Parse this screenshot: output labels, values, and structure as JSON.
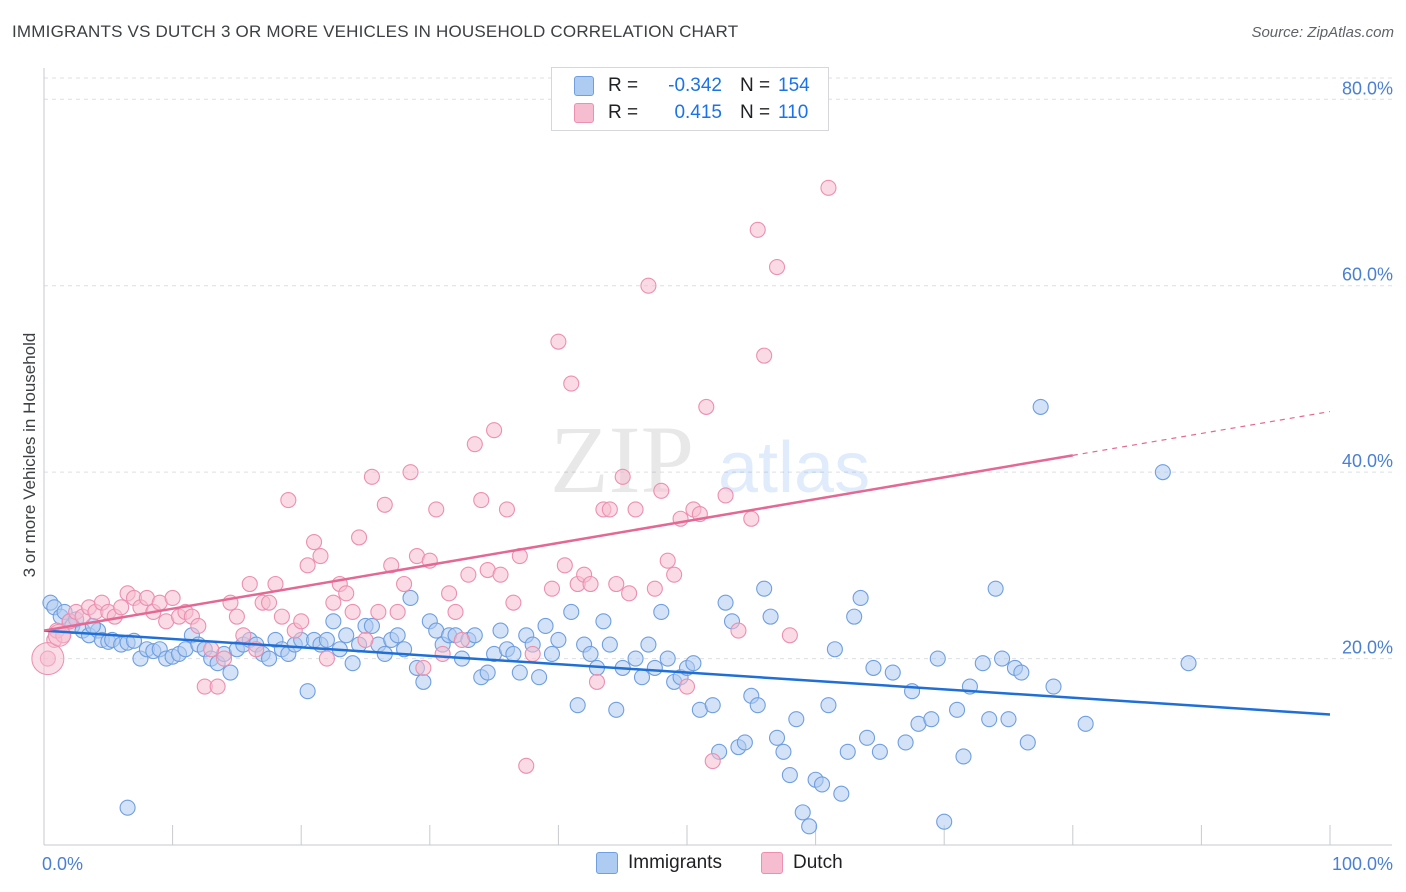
{
  "header": {
    "title": "IMMIGRANTS VS DUTCH 3 OR MORE VEHICLES IN HOUSEHOLD CORRELATION CHART",
    "source": "Source: ZipAtlas.com"
  },
  "legend_top": {
    "rows": [
      {
        "r_label": "R =",
        "r_value": "-0.342",
        "n_label": "N =",
        "n_value": "154"
      },
      {
        "r_label": "R =",
        "r_value": "0.415",
        "n_label": "N =",
        "n_value": "110"
      }
    ]
  },
  "legend_bottom": {
    "immigrants_label": "Immigrants",
    "dutch_label": "Dutch"
  },
  "watermark": {
    "zip": "ZIP",
    "atlas": "atlas"
  },
  "chart_data": {
    "type": "scatter",
    "title": "IMMIGRANTS VS DUTCH 3 OR MORE VEHICLES IN HOUSEHOLD CORRELATION CHART",
    "xlabel": "",
    "ylabel": "3 or more Vehicles in Household",
    "xlim": [
      0,
      100
    ],
    "ylim": [
      0,
      84
    ],
    "x_tick_labels": {
      "left": "0.0%",
      "right": "100.0%"
    },
    "y_ticks": [
      {
        "value": 20,
        "label": "20.0%"
      },
      {
        "value": 40,
        "label": "40.0%"
      },
      {
        "value": 60,
        "label": "60.0%"
      },
      {
        "value": 80,
        "label": "80.0%"
      }
    ],
    "colors": {
      "immigrants_fill": "#aecbf1",
      "immigrants_stroke": "#6f9fe0",
      "immigrants_line": "#1f6fd6",
      "dutch_fill": "#f6bdd0",
      "dutch_stroke": "#ec8fb0",
      "dutch_line": "#e46893",
      "tick_label": "#4a7fd4",
      "grid": "#dcdfe3"
    },
    "series": [
      {
        "name": "Immigrants",
        "R": -0.342,
        "N": 154,
        "trend": {
          "x0": 0,
          "y0": 23.0,
          "x1": 100,
          "y1": 14.0,
          "solid_to": 100
        },
        "points": [
          [
            0.5,
            26
          ],
          [
            0.8,
            25.5
          ],
          [
            1.3,
            24.5
          ],
          [
            1.6,
            25
          ],
          [
            2,
            24
          ],
          [
            2.2,
            23.5
          ],
          [
            2.5,
            24.2
          ],
          [
            3,
            23
          ],
          [
            3.5,
            22.5
          ],
          [
            4.2,
            23
          ],
          [
            3.8,
            23.5
          ],
          [
            4.5,
            22
          ],
          [
            5,
            21.8
          ],
          [
            5.3,
            22
          ],
          [
            6,
            21.5
          ],
          [
            6.5,
            21.7
          ],
          [
            7,
            21.9
          ],
          [
            7.5,
            20
          ],
          [
            8,
            21
          ],
          [
            8.5,
            20.8
          ],
          [
            9,
            21
          ],
          [
            9.5,
            20
          ],
          [
            10,
            20.2
          ],
          [
            10.5,
            20.5
          ],
          [
            11,
            21
          ],
          [
            11.5,
            22.5
          ],
          [
            12,
            21.5
          ],
          [
            12.5,
            21
          ],
          [
            13,
            20
          ],
          [
            13.5,
            19.5
          ],
          [
            14,
            20.5
          ],
          [
            14.5,
            18.5
          ],
          [
            15,
            21
          ],
          [
            15.5,
            21.5
          ],
          [
            16,
            22
          ],
          [
            16.5,
            21.5
          ],
          [
            17,
            20.5
          ],
          [
            17.5,
            20
          ],
          [
            18,
            22
          ],
          [
            18.5,
            21
          ],
          [
            19,
            20.5
          ],
          [
            19.5,
            21.5
          ],
          [
            20,
            22
          ],
          [
            20.5,
            16.5
          ],
          [
            21,
            22
          ],
          [
            21.5,
            21.5
          ],
          [
            22,
            22
          ],
          [
            22.5,
            24
          ],
          [
            23,
            21
          ],
          [
            23.5,
            22.5
          ],
          [
            24,
            19.5
          ],
          [
            24.5,
            21.5
          ],
          [
            25,
            23.5
          ],
          [
            25.5,
            23.5
          ],
          [
            26,
            21.5
          ],
          [
            26.5,
            20.5
          ],
          [
            27,
            22
          ],
          [
            27.5,
            22.5
          ],
          [
            28,
            21
          ],
          [
            28.5,
            26.5
          ],
          [
            29,
            19
          ],
          [
            29.5,
            17.5
          ],
          [
            30,
            24
          ],
          [
            30.5,
            23
          ],
          [
            31,
            21.5
          ],
          [
            31.5,
            22.5
          ],
          [
            32,
            22.5
          ],
          [
            32.5,
            20
          ],
          [
            33,
            22
          ],
          [
            33.5,
            22.5
          ],
          [
            34,
            18
          ],
          [
            34.5,
            18.5
          ],
          [
            35,
            20.5
          ],
          [
            35.5,
            23
          ],
          [
            36,
            21
          ],
          [
            36.5,
            20.5
          ],
          [
            37,
            18.5
          ],
          [
            37.5,
            22.5
          ],
          [
            38,
            21.5
          ],
          [
            38.5,
            18
          ],
          [
            39,
            23.5
          ],
          [
            39.5,
            20.5
          ],
          [
            40,
            22
          ],
          [
            41,
            25
          ],
          [
            41.5,
            15
          ],
          [
            42,
            21.5
          ],
          [
            42.5,
            20.5
          ],
          [
            43,
            19
          ],
          [
            43.5,
            24
          ],
          [
            44,
            21.5
          ],
          [
            44.5,
            14.5
          ],
          [
            45,
            19
          ],
          [
            46,
            20
          ],
          [
            46.5,
            18
          ],
          [
            47,
            21.5
          ],
          [
            47.5,
            19
          ],
          [
            48,
            25
          ],
          [
            48.5,
            20
          ],
          [
            49,
            17.5
          ],
          [
            49.5,
            18
          ],
          [
            50,
            19
          ],
          [
            50.5,
            19.5
          ],
          [
            51,
            14.5
          ],
          [
            52,
            15
          ],
          [
            52.5,
            10
          ],
          [
            53,
            26
          ],
          [
            53.5,
            24
          ],
          [
            54,
            10.5
          ],
          [
            54.5,
            11
          ],
          [
            55,
            16
          ],
          [
            55.5,
            15
          ],
          [
            56,
            27.5
          ],
          [
            56.5,
            24.5
          ],
          [
            57,
            11.5
          ],
          [
            57.5,
            10
          ],
          [
            58,
            7.5
          ],
          [
            58.5,
            13.5
          ],
          [
            59,
            3.5
          ],
          [
            59.5,
            2
          ],
          [
            60,
            7
          ],
          [
            60.5,
            6.5
          ],
          [
            61,
            15
          ],
          [
            61.5,
            21
          ],
          [
            62,
            5.5
          ],
          [
            62.5,
            10
          ],
          [
            63,
            24.5
          ],
          [
            63.5,
            26.5
          ],
          [
            64,
            11.5
          ],
          [
            64.5,
            19
          ],
          [
            65,
            10
          ],
          [
            66,
            18.5
          ],
          [
            67,
            11
          ],
          [
            67.5,
            16.5
          ],
          [
            68,
            13
          ],
          [
            69,
            13.5
          ],
          [
            69.5,
            20
          ],
          [
            70,
            2.5
          ],
          [
            71,
            14.5
          ],
          [
            71.5,
            9.5
          ],
          [
            72,
            17
          ],
          [
            73,
            19.5
          ],
          [
            73.5,
            13.5
          ],
          [
            74,
            27.5
          ],
          [
            74.5,
            20
          ],
          [
            75,
            13.5
          ],
          [
            75.5,
            19
          ],
          [
            76,
            18.5
          ],
          [
            76.5,
            11
          ],
          [
            77.5,
            47
          ],
          [
            78.5,
            17
          ],
          [
            81,
            13
          ],
          [
            87,
            40
          ],
          [
            89,
            19.5
          ],
          [
            6.5,
            4
          ]
        ]
      },
      {
        "name": "Dutch",
        "R": 0.415,
        "N": 110,
        "trend": {
          "x0": 0,
          "y0": 23.0,
          "x1": 100,
          "y1": 46.5,
          "solid_to": 80
        },
        "points": [
          [
            0.3,
            20
          ],
          [
            0.8,
            22
          ],
          [
            1,
            23
          ],
          [
            1.5,
            22.5
          ],
          [
            2,
            24
          ],
          [
            2.5,
            25
          ],
          [
            3,
            24.5
          ],
          [
            3.5,
            25.5
          ],
          [
            4,
            25
          ],
          [
            4.5,
            26
          ],
          [
            5,
            25
          ],
          [
            5.5,
            24.5
          ],
          [
            6,
            25.5
          ],
          [
            6.5,
            27
          ],
          [
            7,
            26.5
          ],
          [
            7.5,
            25.5
          ],
          [
            8,
            26.5
          ],
          [
            8.5,
            25
          ],
          [
            9,
            26
          ],
          [
            9.5,
            24
          ],
          [
            10,
            26.5
          ],
          [
            10.5,
            24.5
          ],
          [
            11,
            25
          ],
          [
            11.5,
            24.5
          ],
          [
            12,
            23.5
          ],
          [
            12.5,
            17
          ],
          [
            13,
            21
          ],
          [
            13.5,
            17
          ],
          [
            14,
            20
          ],
          [
            14.5,
            26
          ],
          [
            15,
            24.5
          ],
          [
            15.5,
            22.5
          ],
          [
            16,
            28
          ],
          [
            16.5,
            21
          ],
          [
            17,
            26
          ],
          [
            17.5,
            26
          ],
          [
            18,
            28
          ],
          [
            18.5,
            24.5
          ],
          [
            19,
            37
          ],
          [
            19.5,
            23
          ],
          [
            20,
            24
          ],
          [
            20.5,
            30
          ],
          [
            21,
            32.5
          ],
          [
            21.5,
            31
          ],
          [
            22,
            20
          ],
          [
            22.5,
            26
          ],
          [
            23,
            28
          ],
          [
            23.5,
            27
          ],
          [
            24,
            25
          ],
          [
            24.5,
            33
          ],
          [
            25,
            22
          ],
          [
            25.5,
            39.5
          ],
          [
            26,
            25
          ],
          [
            26.5,
            36.5
          ],
          [
            27,
            30
          ],
          [
            27.5,
            25
          ],
          [
            28,
            28
          ],
          [
            28.5,
            40
          ],
          [
            29,
            31
          ],
          [
            29.5,
            19
          ],
          [
            30,
            30.5
          ],
          [
            30.5,
            36
          ],
          [
            31,
            20.5
          ],
          [
            31.5,
            27
          ],
          [
            32,
            25
          ],
          [
            32.5,
            22
          ],
          [
            33,
            29
          ],
          [
            33.5,
            43
          ],
          [
            34,
            37
          ],
          [
            34.5,
            29.5
          ],
          [
            35,
            44.5
          ],
          [
            35.5,
            29
          ],
          [
            36,
            36
          ],
          [
            36.5,
            26
          ],
          [
            37,
            31
          ],
          [
            37.5,
            8.5
          ],
          [
            38,
            20.5
          ],
          [
            39.5,
            27.5
          ],
          [
            40,
            54
          ],
          [
            40.5,
            30
          ],
          [
            41,
            49.5
          ],
          [
            41.5,
            28
          ],
          [
            42,
            29
          ],
          [
            42.5,
            28
          ],
          [
            43,
            17.5
          ],
          [
            43.5,
            36
          ],
          [
            44,
            36
          ],
          [
            44.5,
            28
          ],
          [
            45,
            39.5
          ],
          [
            45.5,
            27
          ],
          [
            46,
            36
          ],
          [
            47,
            60
          ],
          [
            47.5,
            27.5
          ],
          [
            48,
            38
          ],
          [
            48.5,
            30.5
          ],
          [
            49,
            29
          ],
          [
            49.5,
            35
          ],
          [
            50,
            17
          ],
          [
            50.5,
            36
          ],
          [
            51,
            35.5
          ],
          [
            51.5,
            47
          ],
          [
            52,
            9
          ],
          [
            53,
            37.5
          ],
          [
            54,
            23
          ],
          [
            55,
            35
          ],
          [
            55.5,
            66
          ],
          [
            56,
            52.5
          ],
          [
            57,
            62
          ],
          [
            58,
            22.5
          ],
          [
            61,
            70.5
          ]
        ]
      }
    ]
  }
}
